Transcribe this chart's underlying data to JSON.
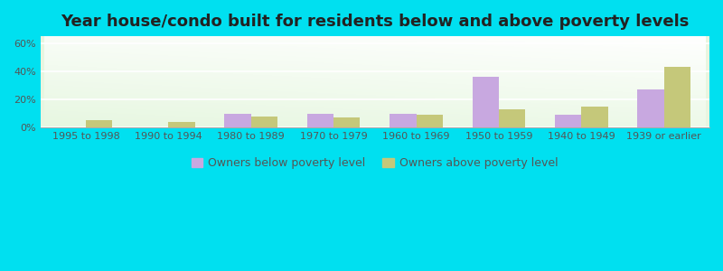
{
  "title": "Year house/condo built for residents below and above poverty levels",
  "categories": [
    "1995 to 1998",
    "1990 to 1994",
    "1980 to 1989",
    "1970 to 1979",
    "1960 to 1969",
    "1950 to 1959",
    "1940 to 1949",
    "1939 or earlier"
  ],
  "below_poverty": [
    0,
    0,
    10,
    10,
    10,
    36,
    9,
    27
  ],
  "above_poverty": [
    5,
    4,
    8,
    7,
    9,
    13,
    15,
    43
  ],
  "below_color": "#c8a8e0",
  "above_color": "#c5c87a",
  "bg_color_topleft": "#d8eed8",
  "bg_color_topright": "#e8f5f5",
  "bg_color_bottom": "#f0faf0",
  "outer_bg": "#00e0f0",
  "ylim": [
    0,
    65
  ],
  "yticks": [
    0,
    20,
    40,
    60
  ],
  "ytick_labels": [
    "0%",
    "20%",
    "40%",
    "60%"
  ],
  "legend_below": "Owners below poverty level",
  "legend_above": "Owners above poverty level",
  "title_fontsize": 13,
  "tick_fontsize": 8,
  "legend_fontsize": 9,
  "bar_width": 0.32,
  "grid_color": "#ddeecc",
  "spine_color": "#cccccc"
}
